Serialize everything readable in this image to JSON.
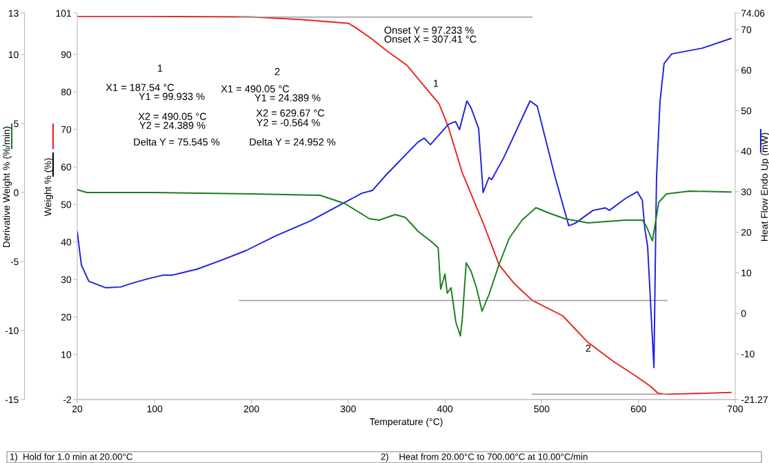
{
  "chart_data": {
    "type": "line",
    "xlabel": "Temperature (°C)",
    "ylabel": "Weight % (%)",
    "y2label": "Heat Flow Endo Up (mW)",
    "y3label": "Derivative Weight % (%/min)",
    "xlim": [
      20,
      700
    ],
    "xticks": [
      20,
      100,
      200,
      300,
      400,
      500,
      600,
      700
    ],
    "ylim": [
      -2,
      101
    ],
    "yticks": [
      -2,
      10,
      20,
      30,
      40,
      50,
      60,
      70,
      80,
      90,
      101
    ],
    "y2lim": [
      -21.27,
      74.06
    ],
    "y2ticks": [
      -21.27,
      -10,
      0,
      10,
      20,
      30,
      40,
      50,
      60,
      70,
      74.06
    ],
    "y3lim": [
      -15,
      13
    ],
    "y3ticks": [
      -15,
      -10,
      -5,
      0,
      5,
      10,
      13
    ],
    "series": [
      {
        "axis": "y",
        "color": "#e8231f",
        "x": [
          20,
          100,
          200,
          250,
          300,
          307.41,
          325,
          339,
          360.7,
          394,
          403.5,
          417.7,
          440.5,
          456,
          472,
          490.4,
          521.8,
          547.5,
          573.8,
          600,
          613,
          620,
          628.7,
          660,
          695.7
        ],
        "values": [
          100.1,
          100.1,
          100.0,
          99.3,
          98.3,
          97.2,
          94.0,
          91.1,
          87.1,
          76.8,
          70.7,
          58.6,
          44.4,
          33.9,
          28.8,
          24.4,
          20.3,
          13.3,
          8.2,
          3.8,
          1.4,
          -0.3,
          -0.6,
          -0.4,
          -0.1
        ]
      },
      {
        "axis": "y2",
        "color": "#1f1fe0",
        "x": [
          20,
          24.3,
          32,
          49.6,
          65,
          75,
          92.7,
          108.4,
          118,
          144,
          169,
          194.6,
          225,
          261,
          314,
          325,
          339,
          372,
          378.5,
          385,
          403.5,
          411,
          415,
          422.7,
          427,
          434.8,
          439.5,
          445.5,
          448.3,
          461,
          488,
          495.4,
          514,
          528,
          534.6,
          553,
          566,
          570,
          587,
          598.7,
          604,
          606.6,
          609.5,
          616,
          618,
          618.7,
          622.3,
          626.5,
          634.4,
          665.8,
          695.7
        ],
        "values": [
          20.1,
          11.9,
          7.9,
          6.3,
          6.5,
          7.3,
          8.5,
          9.4,
          9.4,
          10.9,
          13.1,
          15.5,
          19.1,
          22.8,
          29.6,
          30.3,
          34.1,
          42.2,
          43.2,
          41.6,
          46.6,
          47.3,
          45.3,
          52.4,
          50.7,
          45.6,
          29.8,
          33.5,
          33.0,
          38.5,
          52.4,
          51.1,
          33.5,
          21.6,
          22.2,
          25.4,
          26.0,
          25.4,
          28.4,
          30.0,
          27.9,
          20.9,
          16.5,
          -13.4,
          22.8,
          33.5,
          52.3,
          61.6,
          64.0,
          65.4,
          67.8
        ]
      },
      {
        "axis": "y3",
        "color": "#1a7d1a",
        "x": [
          20,
          30,
          100,
          200,
          271,
          296.5,
          322,
          332,
          348.6,
          359,
          367,
          372,
          385,
          393,
          395.6,
          400,
          402.4,
          406.3,
          411.3,
          416,
          418,
          422,
          427,
          432.6,
          438.4,
          445.5,
          456,
          466.5,
          479.7,
          494,
          508,
          524,
          547.8,
          587,
          604,
          608,
          614.4,
          618,
          621,
          629,
          652.7,
          695.7
        ],
        "values": [
          0.2,
          0.0,
          0.0,
          -0.1,
          -0.2,
          -0.8,
          -1.9,
          -2.0,
          -1.6,
          -1.8,
          -2.4,
          -2.8,
          -3.5,
          -4.0,
          -7.0,
          -5.9,
          -7.3,
          -6.9,
          -9.4,
          -10.4,
          -9.1,
          -5.1,
          -5.7,
          -6.9,
          -8.6,
          -7.4,
          -5.2,
          -3.3,
          -2.0,
          -1.1,
          -1.5,
          -1.9,
          -2.2,
          -2.0,
          -2.0,
          -2.4,
          -3.5,
          -2.0,
          -0.7,
          -0.1,
          0.1,
          0.04
        ]
      },
      {
        "axis": "y",
        "color": "#999999",
        "x": [
          187.54,
          490.05
        ],
        "values": [
          99.933,
          99.933
        ]
      },
      {
        "axis": "y",
        "color": "#999999",
        "x": [
          187.54,
          629.67
        ],
        "values": [
          24.389,
          24.389
        ]
      },
      {
        "axis": "y",
        "color": "#999999",
        "x": [
          490.05,
          629.67
        ],
        "values": [
          -0.564,
          -0.564
        ]
      }
    ],
    "annotations": [
      "1",
      "X1 = 187.54 °C",
      "Y1 = 99.933 %",
      "X2 = 490.05 °C",
      "Y2 = 24.389 %",
      "Delta Y = 75.545 %",
      "2",
      "X1 = 490.05 °C",
      "Y1 = 24.389 %",
      "X2 = 629.67 °C",
      "Y2 = -0.564 %",
      "Delta Y = 24.952 %",
      "Onset Y = 97.233 %",
      "Onset X = 307.41 °C",
      "1",
      "2",
      "1)  Hold for 1.0 min at 20.00°C",
      "2)    Heat from 20.00°C to 700.00°C at 10.00°C/min"
    ]
  }
}
